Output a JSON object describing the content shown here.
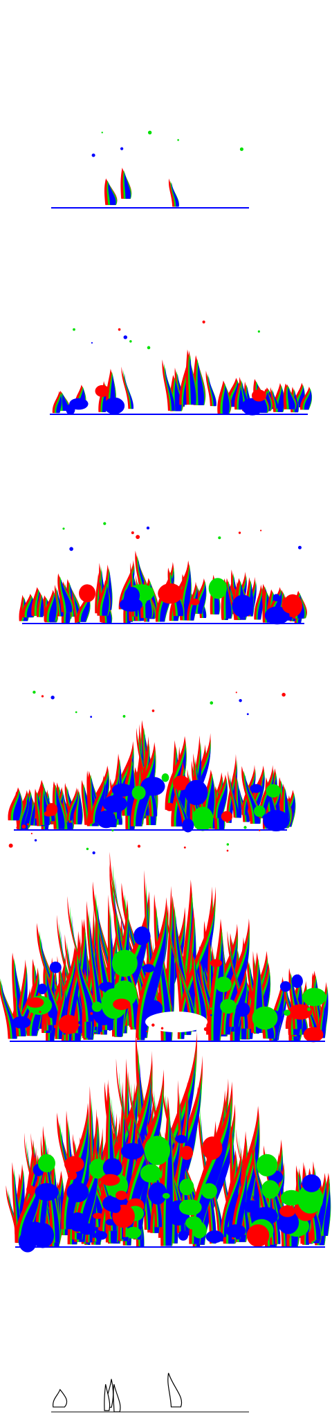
{
  "figure": {
    "panel_count": 7,
    "colors": {
      "red": "#ff0000",
      "green": "#00e000",
      "blue": "#0000ff",
      "outline": "#000000",
      "background": "#ffffff"
    },
    "panels": [
      {
        "id": "panel-1",
        "style": "color",
        "stage": 1
      },
      {
        "id": "panel-2",
        "style": "color",
        "stage": 2
      },
      {
        "id": "panel-3",
        "style": "color",
        "stage": 3
      },
      {
        "id": "panel-4",
        "style": "color",
        "stage": 4
      },
      {
        "id": "panel-5",
        "style": "color",
        "stage": 5
      },
      {
        "id": "panel-6",
        "style": "color",
        "stage": 6
      },
      {
        "id": "panel-7",
        "style": "outline",
        "stage": 1
      }
    ]
  }
}
